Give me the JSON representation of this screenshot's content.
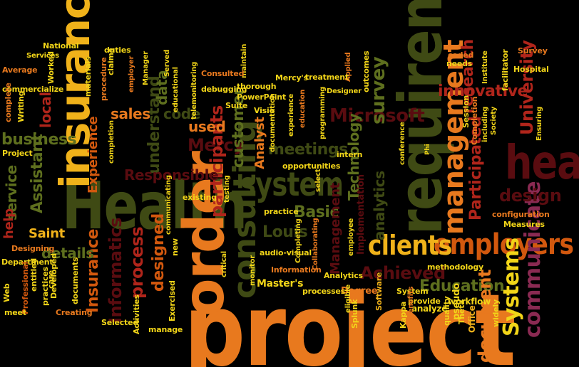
{
  "colors": {
    "background": "#000000",
    "orange": "#E8791E",
    "dark_orange": "#D2580E",
    "gold": "#F0B21A",
    "yellow": "#F2D518",
    "olive": "#B3B31F",
    "light_olive": "#C7C64A",
    "green": "#5E6F1E",
    "dark_green": "#3F4A14",
    "maroon": "#7A1417",
    "dark_maroon": "#5A0C10",
    "crimson": "#B0251B",
    "purple": "#8A2A52"
  },
  "words": [
    "project",
    "Health",
    "requirements",
    "order",
    "health",
    "insurance",
    "consulting",
    "system",
    "employers",
    "management",
    "clients",
    "Microsoft",
    "Mercy",
    "Analyst",
    "Achieved",
    "Systems",
    "Education",
    "communicate",
    "document",
    "Informatics",
    "Insurance",
    "design",
    "innovative",
    "survey",
    "process",
    "designed",
    "research",
    "understand",
    "Technology",
    "University",
    "Participated",
    "participants",
    "meetings",
    "customer",
    "Assistant",
    "business",
    "Responsible",
    "code",
    "used",
    "sales",
    "data",
    "Experience",
    "analytics",
    "local",
    "Basic",
    "Louis",
    "details",
    "service",
    "help",
    "Saint",
    "Management",
    "Implementation",
    "Master's",
    "Department",
    "Professional",
    "Web",
    "Software",
    "Degree",
    "System",
    "Splunk",
    "Kappa",
    "Theta",
    "Office",
    "quality",
    "workflow",
    "pseudo",
    "widely",
    "provide",
    "analyze",
    "methodology",
    "configuration",
    "Measures",
    "Ensuring",
    "Hospital",
    "facilitator",
    "Survey",
    "Institute",
    "coded",
    "needs",
    "including",
    "Society",
    "Phi",
    "Session",
    "Completion",
    "outcomes",
    "Applied",
    "Designer",
    "treatment",
    "Mercy's",
    "PowerPoint",
    "Suite",
    "Visio",
    "debugging",
    "thorough",
    "maintain",
    "Consulted",
    "Served",
    "educational",
    "telemonitoring",
    "Manager",
    "employer",
    "procedure",
    "materials",
    "claims",
    "duties",
    "National",
    "Services",
    "Average",
    "commercialize",
    "Worked",
    "complete",
    "Writing",
    "Project",
    "entitled",
    "care",
    "practices",
    "meet",
    "Designing",
    "Developed",
    "documents",
    "Creating",
    "Selected",
    "Activities",
    "manage",
    "Exercised",
    "new",
    "communicating",
    "existing",
    "testing",
    "select",
    "opportunities",
    "intern",
    "conference",
    "experience",
    "programming",
    "education",
    "documentation",
    "practice",
    "critical",
    "monitor",
    "audio-visual",
    "Information",
    "processes",
    "eligible",
    "Completing",
    "Collaborating",
    "employee",
    "Analytics",
    "Benefits",
    "completion"
  ]
}
